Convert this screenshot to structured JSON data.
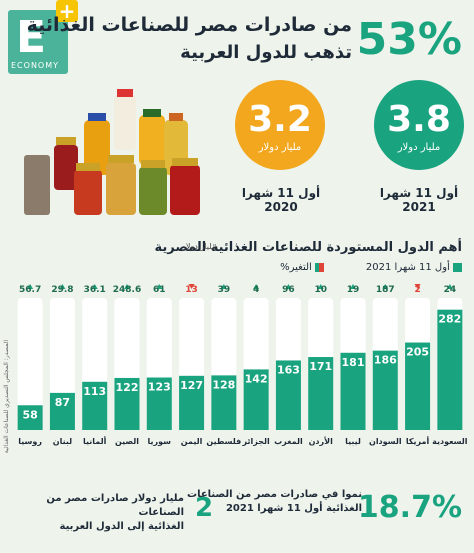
{
  "logo": {
    "letter": "E",
    "plus": "+",
    "text": "ECONOMY"
  },
  "header": {
    "percent": "53%",
    "line1": "من صادرات مصر للصناعات الغذائية",
    "line2": "تذهب للدول العربية"
  },
  "stats": [
    {
      "value": "3.8",
      "unit": "مليار دولار",
      "label": "أول 11 شهرا 2021",
      "color": "#1aa37f"
    },
    {
      "value": "3.2",
      "unit": "مليار دولار",
      "label": "أول 11 شهرا 2020",
      "color": "#f2a71f"
    }
  ],
  "section": {
    "heading": "أهم الدول المستوردة للصناعات الغذائية المصرية",
    "unit": "مليار دولار",
    "legend_bar": "أول 11 شهرا 2021",
    "legend_change": "التغير%"
  },
  "chart_data": {
    "type": "bar",
    "categories": [
      "السعودية",
      "أمريكا",
      "السودان",
      "ليبيا",
      "الأردن",
      "المغرب",
      "الجزائر",
      "فلسطين",
      "اليمن",
      "سوريا",
      "الصين",
      "ألمانيا",
      "لبنان",
      "روسيا"
    ],
    "values": [
      282,
      205,
      186,
      181,
      171,
      163,
      142,
      128,
      127,
      123,
      122,
      113,
      87,
      58
    ],
    "change_labels": [
      "24",
      "2",
      "187",
      "19",
      "10",
      "96",
      "4",
      "39",
      "13",
      "61",
      "248.6",
      "36.1",
      "29.8",
      "56.7"
    ],
    "change_direction": [
      "up",
      "down",
      "up",
      "up",
      "up",
      "up",
      "up",
      "up",
      "down",
      "up",
      "up",
      "up",
      "up",
      "up"
    ],
    "ylim": [
      0,
      300
    ],
    "colors": {
      "bar": "#1aa37f",
      "track": "#ffffff",
      "up": "#1aa37f",
      "down": "#e0453a"
    }
  },
  "footer": {
    "percent": "18.7%",
    "text1_line1": "نموا في صادرات مصر من الصناعات",
    "text1_line2": "الغذائية أول 11 شهرا 2021",
    "two": "2",
    "text2_line1": "مليار دولار صادرات مصر من الصناعات",
    "text2_line2": "الغذائية إلى الدول العربية"
  },
  "source": "المصدر: المجلس التصديري للصناعات الغذائية"
}
